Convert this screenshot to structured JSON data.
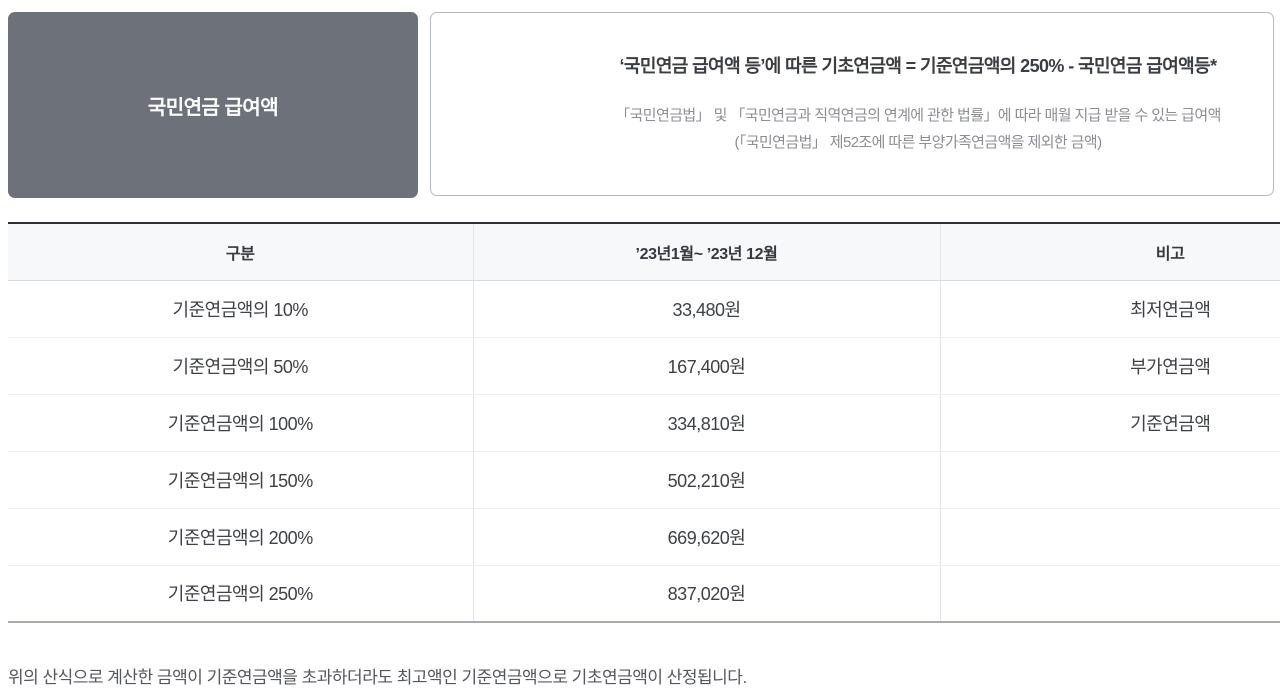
{
  "header": {
    "category_label": "국민연금 급여액",
    "formula": "‘국민연금 급여액 등’에 따른 기초연금액 = 기준연금액의 250% - 국민연금 급여액등*",
    "description_line1": "「국민연금법」 및 「국민연금과 직역연금의 연계에 관한 법률」에 따라 매월 지급 받을 수 있는 급여액",
    "description_line2": "(「국민연금법」 제52조에 따른 부양가족연금액을 제외한 금액)"
  },
  "table": {
    "columns": [
      "구분",
      "’23년1월~ ’23년 12월",
      "비고"
    ],
    "rows": [
      {
        "category": "기준연금액의 10%",
        "amount": "33,480원",
        "note": "최저연금액"
      },
      {
        "category": "기준연금액의 50%",
        "amount": "167,400원",
        "note": "부가연금액"
      },
      {
        "category": "기준연금액의 100%",
        "amount": "334,810원",
        "note": "기준연금액"
      },
      {
        "category": "기준연금액의 150%",
        "amount": "502,210원",
        "note": ""
      },
      {
        "category": "기준연금액의 200%",
        "amount": "669,620원",
        "note": ""
      },
      {
        "category": "기준연금액의 250%",
        "amount": "837,020원",
        "note": ""
      }
    ]
  },
  "footnote": "위의 산식으로 계산한 금액이 기준연금액을 초과하더라도 최고액인 기준연금액으로 기초연금액이 산정됩니다.",
  "colors": {
    "category_box_bg": "#6d7179",
    "category_box_text": "#ffffff",
    "formula_box_border": "#b7babe",
    "formula_text": "#3a3d43",
    "description_text": "#8b8e93",
    "table_top_border": "#2c2f35",
    "table_header_bg": "#f7f8f9",
    "table_bottom_border": "#a7aaae",
    "row_divider": "#eceef0",
    "body_text": "#3e4147"
  }
}
